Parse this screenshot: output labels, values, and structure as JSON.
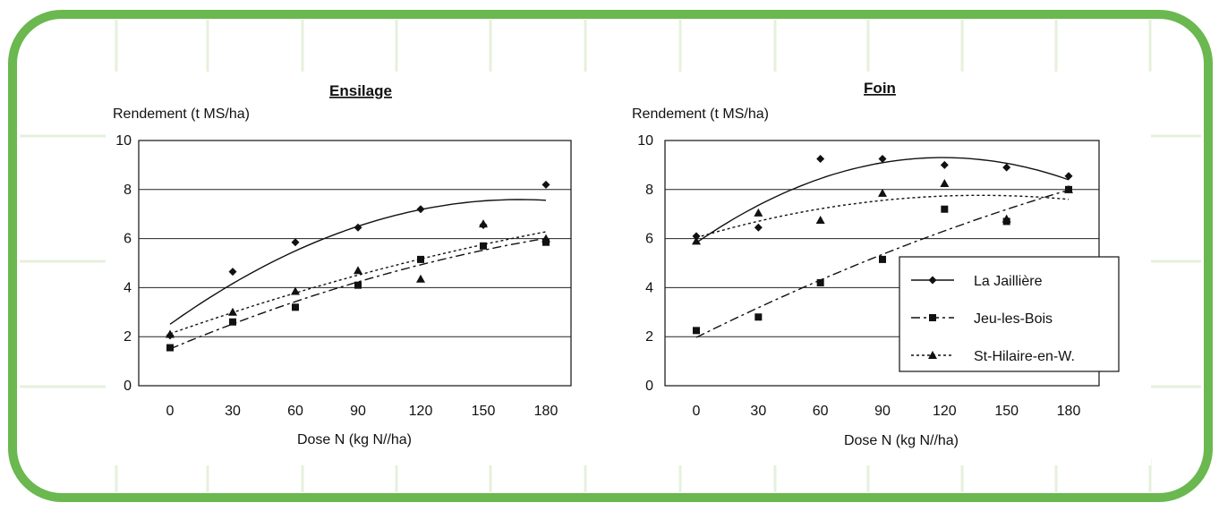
{
  "chart_data": [
    {
      "type": "scatter",
      "title": "Ensilage",
      "ylabel": "Rendement (t MS/ha)",
      "xlabel": "Dose N (kg N//ha)",
      "x_ticks": [
        0,
        30,
        60,
        90,
        120,
        150,
        180
      ],
      "y_ticks": [
        0,
        2,
        4,
        6,
        8,
        10
      ],
      "xlim": [
        0,
        180
      ],
      "ylim": [
        0,
        10
      ],
      "grid": "horizontal",
      "series": [
        {
          "name": "La Jaillière",
          "marker": "diamond",
          "line": "solid",
          "x": [
            0,
            30,
            60,
            90,
            120,
            150,
            180
          ],
          "y": [
            2.05,
            4.65,
            5.85,
            6.45,
            7.2,
            6.55,
            8.2
          ]
        },
        {
          "name": "Jeu-les-Bois",
          "marker": "square",
          "line": "dashdot",
          "x": [
            0,
            30,
            60,
            90,
            120,
            150,
            180
          ],
          "y": [
            1.55,
            2.6,
            3.2,
            4.1,
            5.15,
            5.7,
            5.85
          ]
        },
        {
          "name": "St-Hilaire-en-W.",
          "marker": "triangle",
          "line": "dotted",
          "x": [
            0,
            30,
            60,
            90,
            120,
            150,
            180
          ],
          "y": [
            2.1,
            3.0,
            3.85,
            4.7,
            4.35,
            6.6,
            6.0
          ]
        }
      ]
    },
    {
      "type": "scatter",
      "title": "Foin",
      "ylabel": "Rendement (t MS/ha)",
      "xlabel": "Dose N (kg N//ha)",
      "x_ticks": [
        0,
        30,
        60,
        90,
        120,
        150,
        180
      ],
      "y_ticks": [
        0,
        2,
        4,
        6,
        8,
        10
      ],
      "xlim": [
        0,
        180
      ],
      "ylim": [
        0,
        10
      ],
      "grid": "horizontal",
      "legend_position": "bottom-right",
      "series": [
        {
          "name": "La Jaillière",
          "marker": "diamond",
          "line": "solid",
          "x": [
            0,
            30,
            60,
            90,
            120,
            150,
            180
          ],
          "y": [
            6.1,
            6.45,
            9.25,
            9.25,
            9.0,
            8.9,
            8.55
          ]
        },
        {
          "name": "Jeu-les-Bois",
          "marker": "square",
          "line": "dashdot",
          "x": [
            0,
            30,
            60,
            90,
            120,
            150,
            180
          ],
          "y": [
            2.25,
            2.8,
            4.2,
            5.15,
            7.2,
            6.7,
            8.0
          ]
        },
        {
          "name": "St-Hilaire-en-W.",
          "marker": "triangle",
          "line": "dotted",
          "x": [
            0,
            30,
            60,
            90,
            120,
            150,
            180
          ],
          "y": [
            5.9,
            7.05,
            6.75,
            7.85,
            8.25,
            6.8,
            8.0
          ]
        }
      ]
    }
  ],
  "colors": {
    "frame_border": "#6ab84f",
    "grid_line": "#222222",
    "ink": "#111111",
    "background_lines": "#e6f1dc"
  }
}
